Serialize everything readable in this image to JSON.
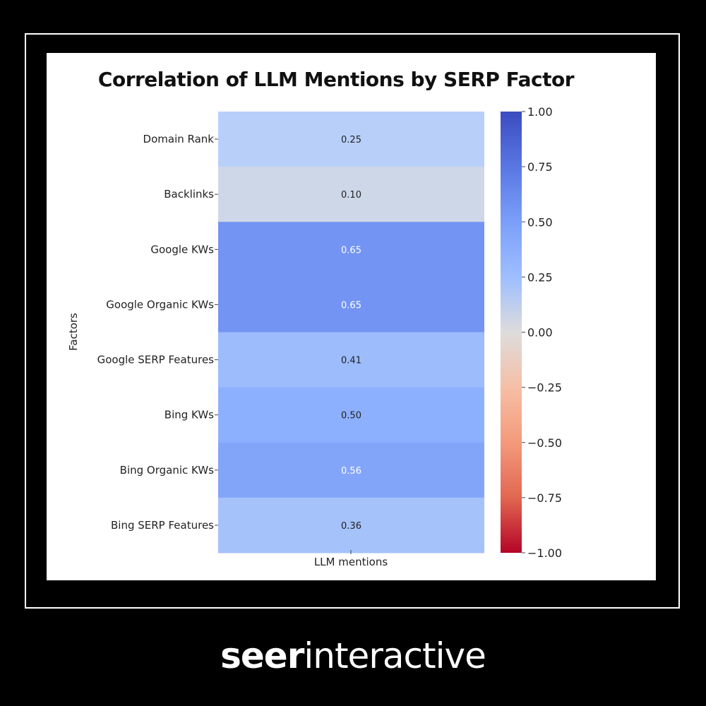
{
  "chart_data": {
    "type": "heatmap",
    "title": "Correlation of LLM Mentions by SERP Factor",
    "xlabel": "LLM mentions",
    "ylabel": "Factors",
    "columns": [
      "LLM mentions"
    ],
    "categories": [
      "Domain Rank",
      "Backlinks",
      "Google KWs",
      "Google Organic KWs",
      "Google SERP Features",
      "Bing KWs",
      "Bing Organic KWs",
      "Bing SERP Features"
    ],
    "values": [
      0.25,
      0.1,
      0.65,
      0.65,
      0.41,
      0.5,
      0.56,
      0.36
    ],
    "value_labels": [
      "0.25",
      "0.10",
      "0.65",
      "0.65",
      "0.41",
      "0.50",
      "0.56",
      "0.36"
    ],
    "colorbar": {
      "colormap": "coolwarm",
      "range": [
        -1,
        1
      ],
      "ticks": [
        1.0,
        0.75,
        0.5,
        0.25,
        0.0,
        -0.25,
        -0.5,
        -0.75,
        -1.0
      ],
      "tick_labels": [
        "1.00",
        "0.75",
        "0.50",
        "0.25",
        "0.00",
        "−0.25",
        "−0.50",
        "−0.75",
        "−1.00"
      ]
    }
  },
  "branding": {
    "logo_bold": "seer",
    "logo_light": "interactive"
  },
  "colors": {
    "background": "#000000",
    "panel": "#ffffff",
    "brand_text": "#ffffff"
  }
}
